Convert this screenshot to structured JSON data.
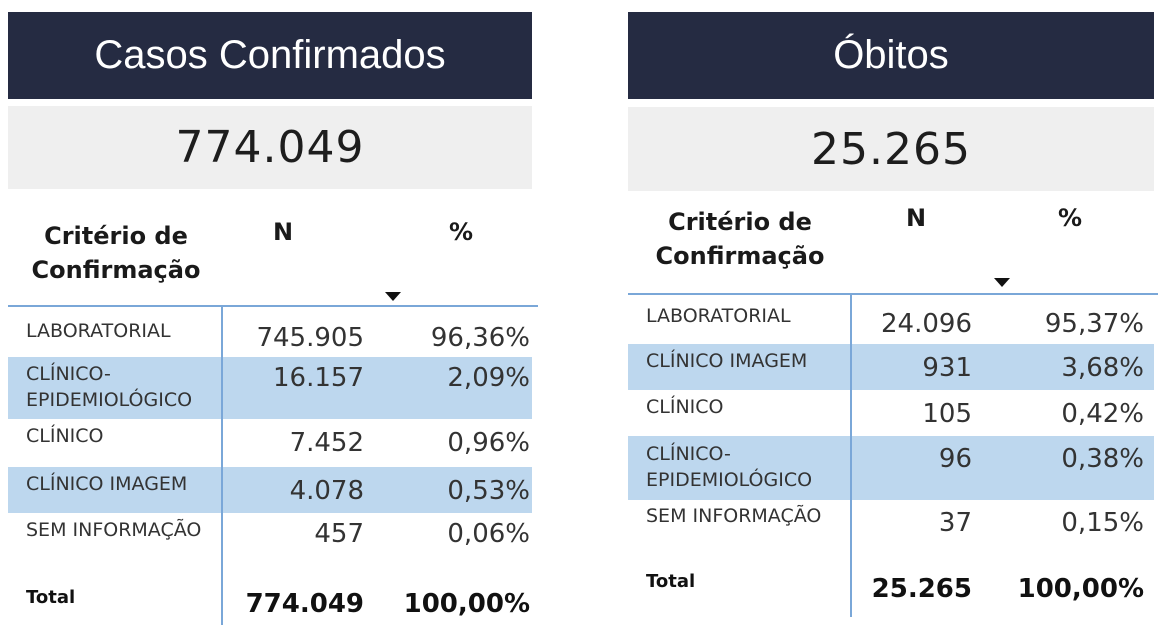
{
  "casos": {
    "title": "Casos Confirmados",
    "kpi": "774.049",
    "headers": {
      "criterio": "Critério de Confirmação",
      "n": "N",
      "pct": "%"
    },
    "rows": [
      {
        "label": "LABORATORIAL",
        "n": "745.905",
        "pct": "96,36%"
      },
      {
        "label": "CLÍNICO-EPIDEMIOLÓGICO",
        "n": "16.157",
        "pct": "2,09%"
      },
      {
        "label": "CLÍNICO",
        "n": "7.452",
        "pct": "0,96%"
      },
      {
        "label": "CLÍNICO IMAGEM",
        "n": "4.078",
        "pct": "0,53%"
      },
      {
        "label": "SEM INFORMAÇÃO",
        "n": "457",
        "pct": "0,06%"
      }
    ],
    "total": {
      "label": "Total",
      "n": "774.049",
      "pct": "100,00%"
    }
  },
  "obitos": {
    "title": "Óbitos",
    "kpi": "25.265",
    "headers": {
      "criterio": "Critério de Confirmação",
      "n": "N",
      "pct": "%"
    },
    "rows": [
      {
        "label": "LABORATORIAL",
        "n": "24.096",
        "pct": "95,37%"
      },
      {
        "label": "CLÍNICO IMAGEM",
        "n": "931",
        "pct": "3,68%"
      },
      {
        "label": "CLÍNICO",
        "n": "105",
        "pct": "0,42%"
      },
      {
        "label": "CLÍNICO-EPIDEMIOLÓGICO",
        "n": "96",
        "pct": "0,38%"
      },
      {
        "label": "SEM INFORMAÇÃO",
        "n": "37",
        "pct": "0,15%"
      }
    ],
    "total": {
      "label": "Total",
      "n": "25.265",
      "pct": "100,00%"
    }
  },
  "colors": {
    "title_bg": "#252b42",
    "kpi_bg": "#efefef",
    "band": "#bdd7ee",
    "rule": "#7aa7d8"
  }
}
